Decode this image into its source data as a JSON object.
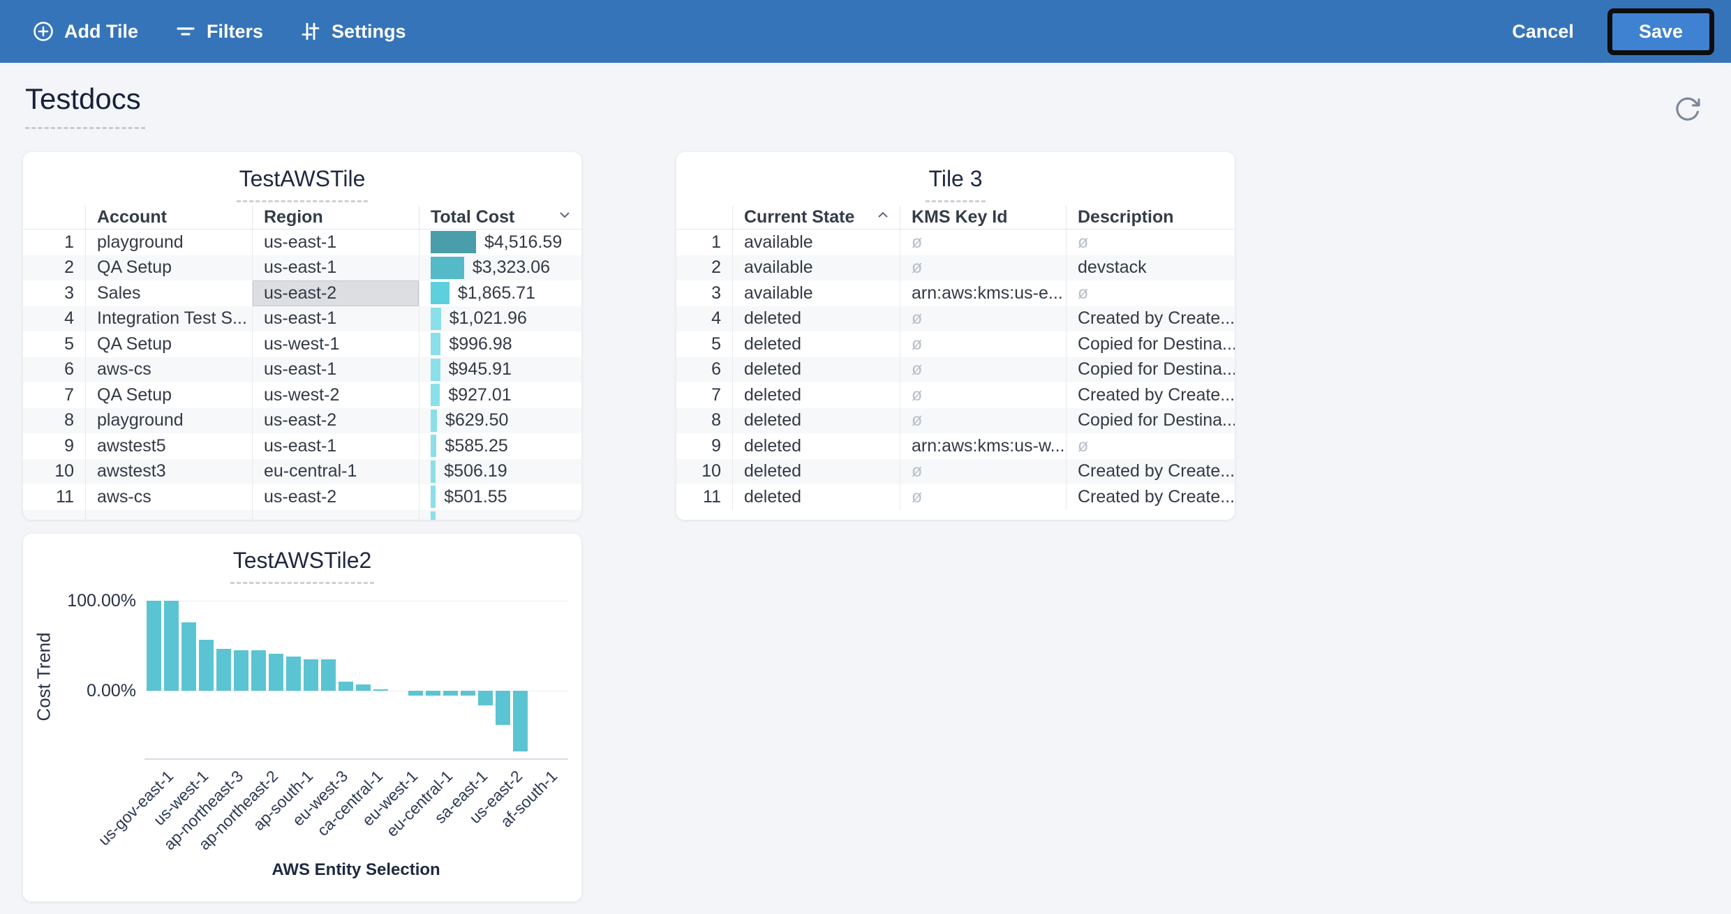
{
  "topbar": {
    "bg_color": "#3674ba",
    "add_tile_label": "Add Tile",
    "filters_label": "Filters",
    "settings_label": "Settings",
    "cancel_label": "Cancel",
    "save_label": "Save",
    "save_highlighted": true
  },
  "page": {
    "title": "Testdocs",
    "background_color": "#f3f5f8"
  },
  "tiles": {
    "aws_tile": {
      "title": "TestAWSTile",
      "columns": [
        "Account",
        "Region",
        "Total Cost"
      ],
      "sort": {
        "column": "Total Cost",
        "direction": "desc"
      },
      "selected_cell": {
        "row_num": 3,
        "column": "Region"
      },
      "partial_next_row_visible": true,
      "rows": [
        {
          "num": 1,
          "account": "playground",
          "region": "us-east-1",
          "cost": "$4,516.59",
          "cost_value": 4516.59
        },
        {
          "num": 2,
          "account": "QA Setup",
          "region": "us-east-1",
          "cost": "$3,323.06",
          "cost_value": 3323.06
        },
        {
          "num": 3,
          "account": "Sales",
          "region": "us-east-2",
          "cost": "$1,865.71",
          "cost_value": 1865.71
        },
        {
          "num": 4,
          "account": "Integration Test S...",
          "region": "us-east-1",
          "cost": "$1,021.96",
          "cost_value": 1021.96
        },
        {
          "num": 5,
          "account": "QA Setup",
          "region": "us-west-1",
          "cost": "$996.98",
          "cost_value": 996.98
        },
        {
          "num": 6,
          "account": "aws-cs",
          "region": "us-east-1",
          "cost": "$945.91",
          "cost_value": 945.91
        },
        {
          "num": 7,
          "account": "QA Setup",
          "region": "us-west-2",
          "cost": "$927.01",
          "cost_value": 927.01
        },
        {
          "num": 8,
          "account": "playground",
          "region": "us-east-2",
          "cost": "$629.50",
          "cost_value": 629.5
        },
        {
          "num": 9,
          "account": "awstest5",
          "region": "us-east-1",
          "cost": "$585.25",
          "cost_value": 585.25
        },
        {
          "num": 10,
          "account": "awstest3",
          "region": "eu-central-1",
          "cost": "$506.19",
          "cost_value": 506.19
        },
        {
          "num": 11,
          "account": "aws-cs",
          "region": "us-east-2",
          "cost": "$501.55",
          "cost_value": 501.55
        }
      ],
      "cost_bar_colors": {
        "tier1": "#4a9daa",
        "tier2": "#55bac7",
        "tier3": "#5ecfdc",
        "tier4": "#8adfe9"
      }
    },
    "tile3": {
      "title": "Tile 3",
      "columns": [
        "Current State",
        "KMS Key Id",
        "Description"
      ],
      "sort": {
        "column": "Current State",
        "direction": "asc"
      },
      "null_symbol": "ø",
      "rows": [
        {
          "num": 1,
          "state": "available",
          "kms": "ø",
          "desc": "ø"
        },
        {
          "num": 2,
          "state": "available",
          "kms": "ø",
          "desc": "devstack"
        },
        {
          "num": 3,
          "state": "available",
          "kms": "arn:aws:kms:us-e...",
          "desc": "ø"
        },
        {
          "num": 4,
          "state": "deleted",
          "kms": "ø",
          "desc": "Created by Create..."
        },
        {
          "num": 5,
          "state": "deleted",
          "kms": "ø",
          "desc": "Copied for Destina..."
        },
        {
          "num": 6,
          "state": "deleted",
          "kms": "ø",
          "desc": "Copied for Destina..."
        },
        {
          "num": 7,
          "state": "deleted",
          "kms": "ø",
          "desc": "Created by Create..."
        },
        {
          "num": 8,
          "state": "deleted",
          "kms": "ø",
          "desc": "Copied for Destina..."
        },
        {
          "num": 9,
          "state": "deleted",
          "kms": "arn:aws:kms:us-w...",
          "desc": "ø"
        },
        {
          "num": 10,
          "state": "deleted",
          "kms": "ø",
          "desc": "Created by Create..."
        },
        {
          "num": 11,
          "state": "deleted",
          "kms": "ø",
          "desc": "Created by Create..."
        }
      ]
    }
  },
  "chart_data": {
    "type": "bar",
    "title": "TestAWSTile2",
    "xlabel": "AWS Entity Selection",
    "ylabel": "Cost Trend",
    "y_tick_labels": [
      "100.00%",
      "0.00%"
    ],
    "y_tick_values": [
      100,
      0
    ],
    "ylim": [
      -75,
      108
    ],
    "grid": "horizontal gridlines at 100% and 0%",
    "legend": "none",
    "bar_color": "#5bc4d2",
    "values_pct": [
      100,
      100,
      76,
      57,
      47,
      45,
      45,
      41,
      38,
      35,
      35,
      10,
      7,
      2,
      0,
      -5,
      -5,
      -5,
      -5,
      -16,
      -38,
      -67
    ],
    "x_tick_labels": [
      "us-gov-east-1",
      "us-west-1",
      "ap-northeast-3",
      "ap-northeast-2",
      "ap-south-1",
      "eu-west-3",
      "ca-central-1",
      "eu-west-1",
      "eu-central-1",
      "sa-east-1",
      "us-east-2",
      "af-south-1"
    ],
    "x_label_interval": "one label per two bars"
  }
}
